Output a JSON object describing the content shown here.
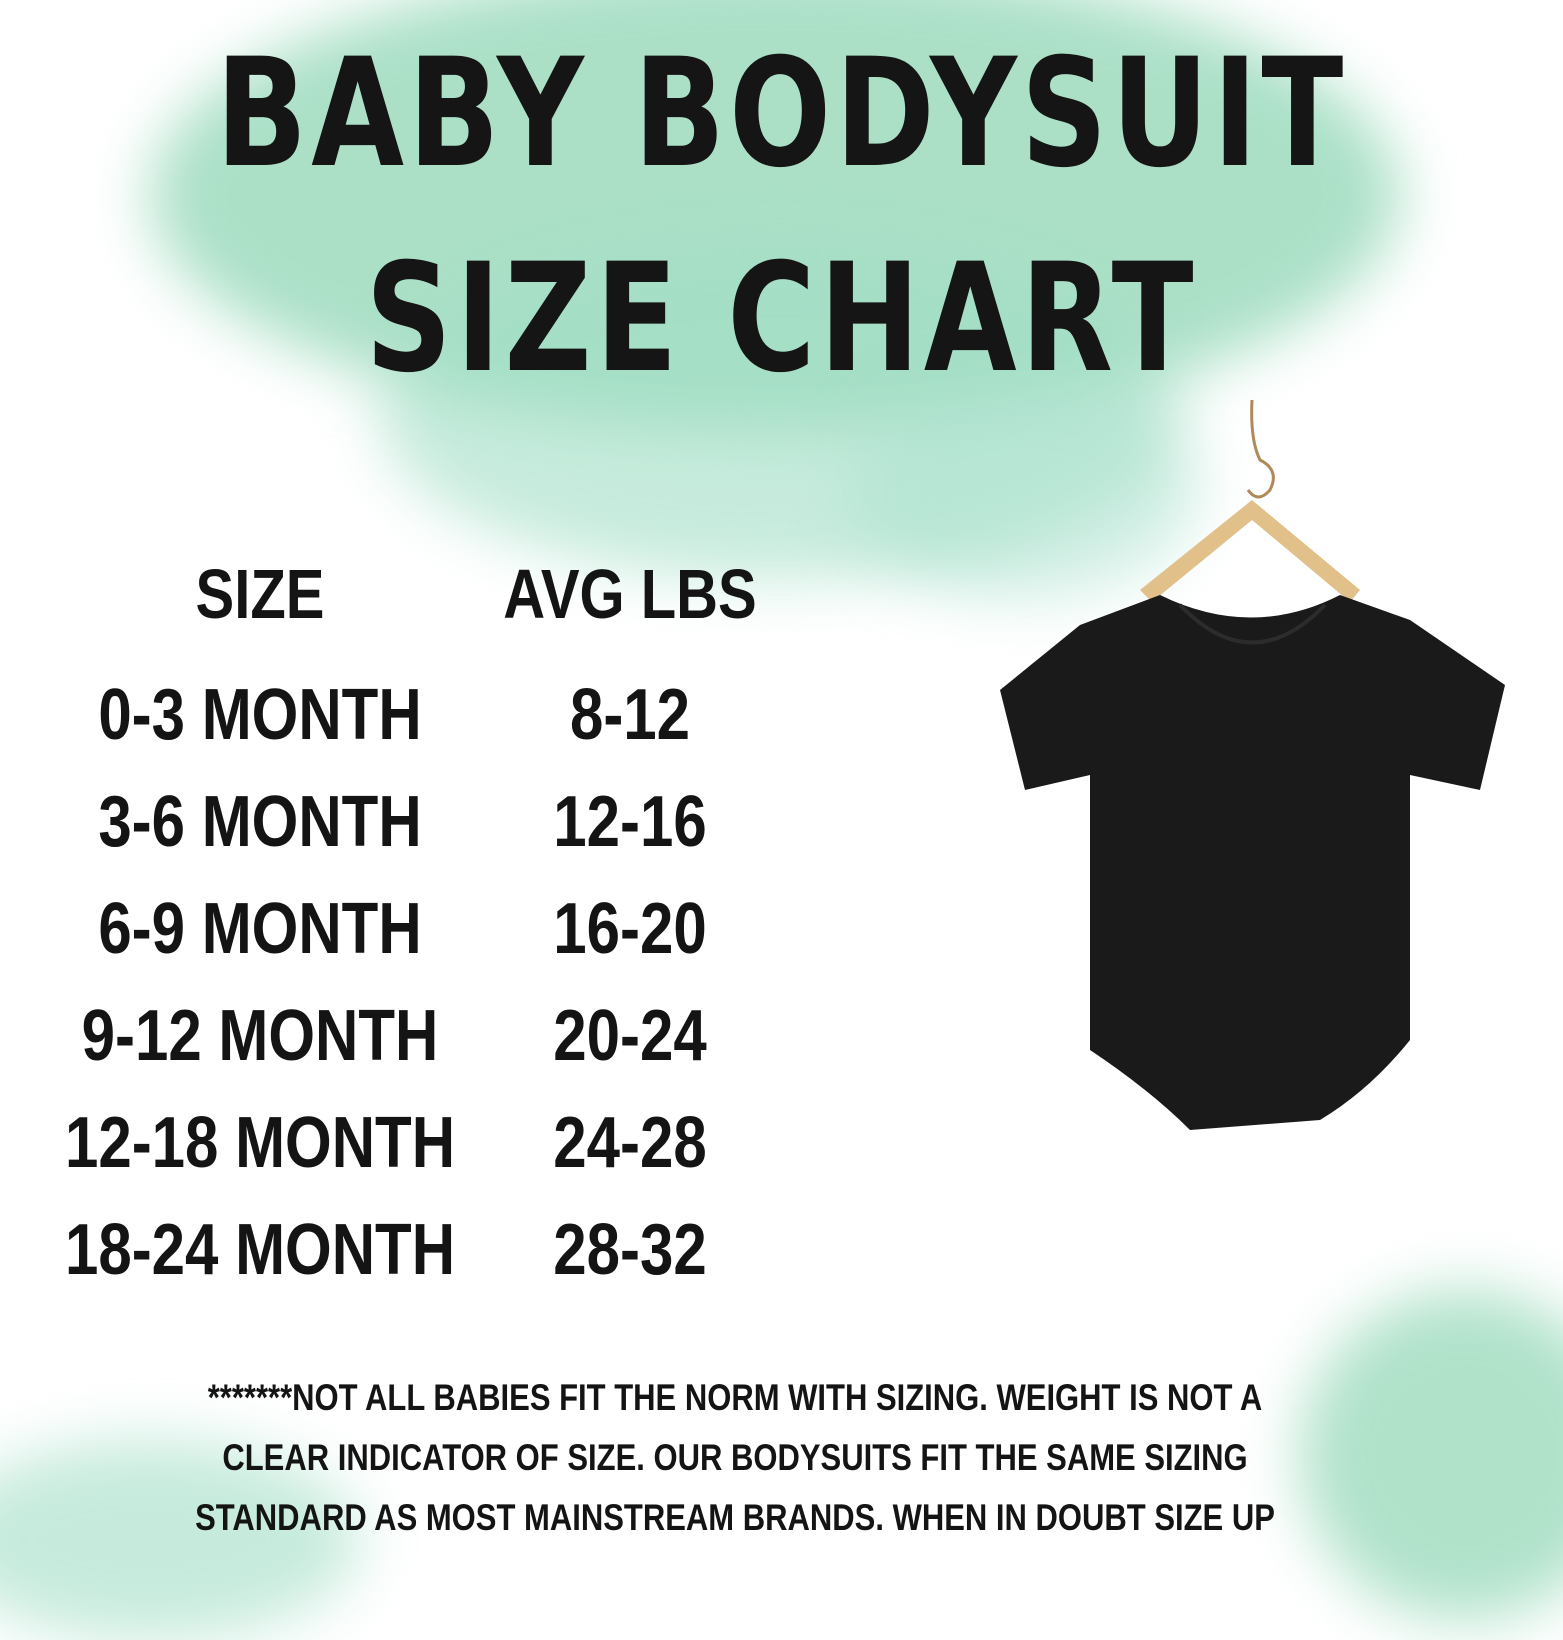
{
  "title": {
    "line1": "BABY BODYSUIT",
    "line2": "SIZE CHART"
  },
  "table": {
    "headers": [
      "SIZE",
      "AVG LBS"
    ],
    "rows": [
      [
        "0-3 MONTH",
        "8-12"
      ],
      [
        "3-6 MONTH",
        "12-16"
      ],
      [
        "6-9 MONTH",
        "16-20"
      ],
      [
        "9-12 MONTH",
        "20-24"
      ],
      [
        "12-18 MONTH",
        "24-28"
      ],
      [
        "18-24 MONTH",
        "28-32"
      ]
    ]
  },
  "footnote": "*******NOT ALL BABIES FIT THE NORM WITH SIZING. WEIGHT IS NOT A CLEAR INDICATOR OF SIZE. OUR BODYSUITS FIT THE SAME SIZING STANDARD AS MOST MAINSTREAM BRANDS. WHEN IN DOUBT SIZE UP",
  "colors": {
    "watercolor": "#8fd6b4",
    "text": "#141414",
    "bodysuit": "#1a1a1a",
    "hanger": "#e2c08a"
  }
}
